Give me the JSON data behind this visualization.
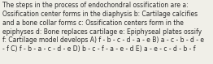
{
  "lines": [
    "The steps in the process of endochondral ossification are a:",
    "Ossification center forms in the diaphysis b: Cartilage calcifies",
    "and a bone collar forms c: Ossification centers form in the",
    "epiphyses d: Bone replaces cartilage e: Epiphyseal plates ossify",
    "f: Cartilage model develops A) f - b - c - d - a - e B) a - c - b - d - e",
    "- f C) f - b - a - c - d - e D) b - c - f - a - e - d E) a - e - c - d - b - f"
  ],
  "font_size": 5.5,
  "text_color": "#2a2a2a",
  "background_color": "#f0efe8",
  "fig_width": 2.62,
  "fig_height": 0.79,
  "dpi": 100
}
